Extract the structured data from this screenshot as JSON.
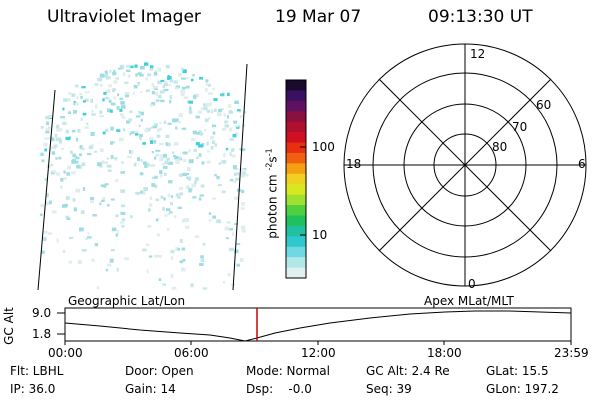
{
  "header": {
    "instrument": "Ultraviolet Imager",
    "date": "19 Mar 07",
    "time": "09:13:30 UT"
  },
  "colorbar": {
    "label": "photon cm",
    "label_sup1": "-2",
    "label_mid": "s",
    "label_sup2": "-1",
    "ticks": [
      "100",
      "10"
    ],
    "colors": [
      "#1a0a2e",
      "#3a1060",
      "#601060",
      "#8a1040",
      "#b01030",
      "#d01020",
      "#e83010",
      "#f06010",
      "#f5a010",
      "#f0d020",
      "#d8e820",
      "#a0e030",
      "#50d040",
      "#20c060",
      "#20c0a0",
      "#30c8d0",
      "#70d8e0",
      "#b0e8ea",
      "#e0f0f0"
    ]
  },
  "polar": {
    "clock_labels": {
      "top": "12",
      "left": "18",
      "right": "6",
      "bottom": "0"
    },
    "lat_labels": [
      "60",
      "70",
      "80"
    ]
  },
  "timeline": {
    "left_label": "Geographic Lat/Lon",
    "right_label": "Apex MLat/MLT",
    "axis_title": "GC Alt",
    "y_ticks": [
      "9.0",
      "1.8"
    ],
    "x_ticks": [
      "00:00",
      "06:00",
      "12:00",
      "18:00",
      "23:59"
    ],
    "marker_color": "#cc0000"
  },
  "status": {
    "flt": "Flt: LBHL",
    "ip": "IP: 36.0",
    "door": "Door: Open",
    "gain": "Gain: 14",
    "mode": "Mode: Normal",
    "dsp": "Dsp:    -0.0",
    "gc_alt": "GC Alt: 2.4 Re",
    "seq": "Seq: 39",
    "glat": "GLat: 15.5",
    "glon": "GLon: 197.2"
  }
}
